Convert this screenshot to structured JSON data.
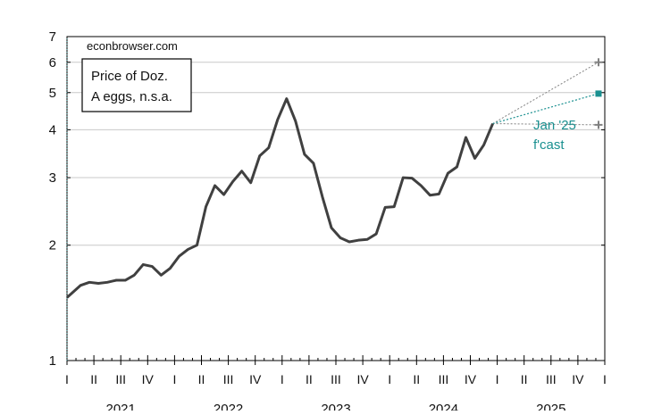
{
  "chart_data": {
    "type": "line",
    "watermark": "econbrowser.com",
    "legend": [
      "Price of Doz.",
      "A eggs, n.s.a."
    ],
    "annotation": [
      "Jan '25",
      "f'cast"
    ],
    "y_scale": "log",
    "ylim": [
      1,
      7
    ],
    "y_ticks": [
      1,
      2,
      3,
      4,
      5,
      6,
      7
    ],
    "x_range": [
      "2021-01",
      "2025-12"
    ],
    "quarter_ticks": [
      "I",
      "II",
      "III",
      "IV",
      "I",
      "II",
      "III",
      "IV",
      "I",
      "II",
      "III",
      "IV",
      "I",
      "II",
      "III",
      "IV",
      "I",
      "II",
      "III",
      "IV",
      "I"
    ],
    "years": [
      "2021",
      "2022",
      "2023",
      "2024",
      "2025"
    ],
    "grid": true,
    "colors": {
      "series": "#404040",
      "forecast": "#1a9090",
      "bounds": "#808080"
    },
    "series": [
      {
        "values": [
          {
            "x": "2021-01",
            "y": 1.46
          },
          {
            "x": "2021-02",
            "y": 1.57
          },
          {
            "x": "2021-03",
            "y": 1.6
          },
          {
            "x": "2021-04",
            "y": 1.59
          },
          {
            "x": "2021-05",
            "y": 1.6
          },
          {
            "x": "2021-06",
            "y": 1.62
          },
          {
            "x": "2021-07",
            "y": 1.62
          },
          {
            "x": "2021-08",
            "y": 1.67
          },
          {
            "x": "2021-09",
            "y": 1.78
          },
          {
            "x": "2021-10",
            "y": 1.76
          },
          {
            "x": "2021-11",
            "y": 1.67
          },
          {
            "x": "2021-12",
            "y": 1.74
          },
          {
            "x": "2022-01",
            "y": 1.87
          },
          {
            "x": "2022-02",
            "y": 1.95
          },
          {
            "x": "2022-03",
            "y": 2.0
          },
          {
            "x": "2022-04",
            "y": 2.52
          },
          {
            "x": "2022-05",
            "y": 2.86
          },
          {
            "x": "2022-06",
            "y": 2.71
          },
          {
            "x": "2022-07",
            "y": 2.93
          },
          {
            "x": "2022-08",
            "y": 3.12
          },
          {
            "x": "2022-09",
            "y": 2.91
          },
          {
            "x": "2022-10",
            "y": 3.42
          },
          {
            "x": "2022-11",
            "y": 3.59
          },
          {
            "x": "2022-12",
            "y": 4.25
          },
          {
            "x": "2023-01",
            "y": 4.82
          },
          {
            "x": "2023-02",
            "y": 4.21
          },
          {
            "x": "2023-03",
            "y": 3.45
          },
          {
            "x": "2023-04",
            "y": 3.27
          },
          {
            "x": "2023-05",
            "y": 2.67
          },
          {
            "x": "2023-06",
            "y": 2.22
          },
          {
            "x": "2023-07",
            "y": 2.09
          },
          {
            "x": "2023-08",
            "y": 2.04
          },
          {
            "x": "2023-09",
            "y": 2.06
          },
          {
            "x": "2023-10",
            "y": 2.07
          },
          {
            "x": "2023-11",
            "y": 2.14
          },
          {
            "x": "2023-12",
            "y": 2.51
          },
          {
            "x": "2024-01",
            "y": 2.52
          },
          {
            "x": "2024-02",
            "y": 3.0
          },
          {
            "x": "2024-03",
            "y": 2.99
          },
          {
            "x": "2024-04",
            "y": 2.86
          },
          {
            "x": "2024-05",
            "y": 2.7
          },
          {
            "x": "2024-06",
            "y": 2.72
          },
          {
            "x": "2024-07",
            "y": 3.08
          },
          {
            "x": "2024-08",
            "y": 3.2
          },
          {
            "x": "2024-09",
            "y": 3.82
          },
          {
            "x": "2024-10",
            "y": 3.37
          },
          {
            "x": "2024-11",
            "y": 3.65
          },
          {
            "x": "2024-12",
            "y": 4.15
          }
        ]
      }
    ],
    "forecast": {
      "origin": {
        "x": "2024-12",
        "y": 4.15
      },
      "central": {
        "x": "2025-12",
        "y": 4.97
      },
      "upper": {
        "x": "2025-12",
        "y": 6.0
      },
      "lower": {
        "x": "2025-12",
        "y": 4.12
      }
    }
  }
}
